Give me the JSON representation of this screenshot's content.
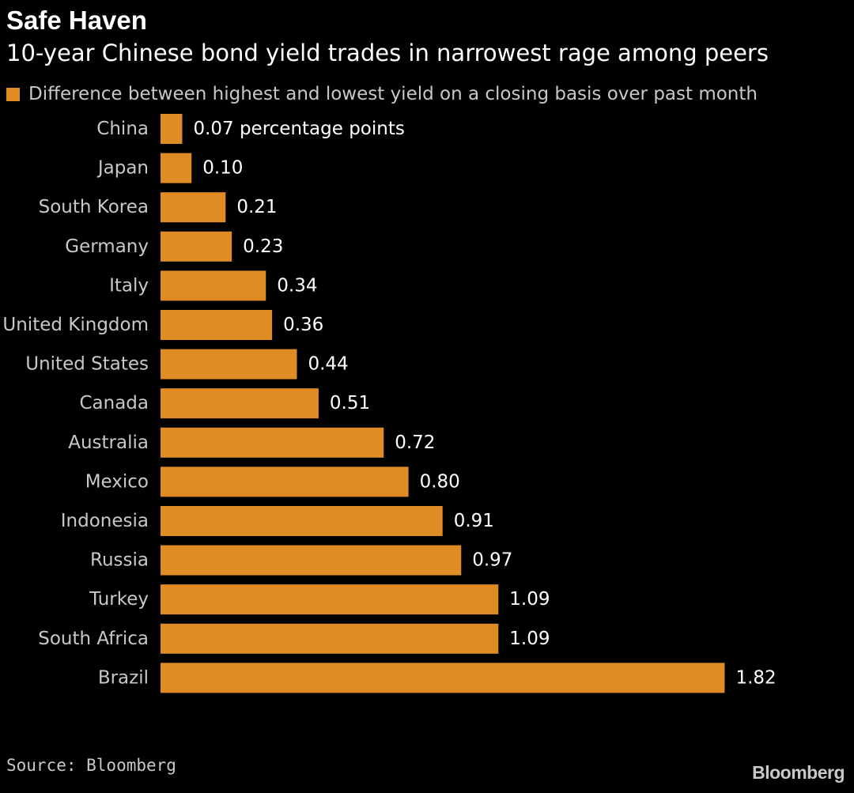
{
  "colors": {
    "background": "#000000",
    "bar": "#e08c25",
    "text": "#ffffff",
    "muted": "#c8c8c8"
  },
  "header": {
    "title": "Safe Haven",
    "subtitle": "10-year Chinese bond yield trades in narrowest rage among peers"
  },
  "legend": {
    "label": "Difference between highest and lowest yield on a closing basis over past month"
  },
  "footer": {
    "source": "Source: Bloomberg",
    "brand": "Bloomberg"
  },
  "chart_data": {
    "type": "bar",
    "orientation": "horizontal",
    "title": "Safe Haven",
    "subtitle": "10-year Chinese bond yield trades in narrowest rage among peers",
    "xlabel": "",
    "ylabel": "",
    "xlim": [
      0,
      2
    ],
    "grid": false,
    "legend_position": "top-left",
    "unit_label": "percentage points",
    "categories": [
      "China",
      "Japan",
      "South Korea",
      "Germany",
      "Italy",
      "United Kingdom",
      "United States",
      "Canada",
      "Australia",
      "Mexico",
      "Indonesia",
      "Russia",
      "Turkey",
      "South Africa",
      "Brazil"
    ],
    "values": [
      0.07,
      0.1,
      0.21,
      0.23,
      0.34,
      0.36,
      0.44,
      0.51,
      0.72,
      0.8,
      0.91,
      0.97,
      1.09,
      1.09,
      1.82
    ],
    "value_labels": [
      "0.07 percentage points",
      "0.10",
      "0.21",
      "0.23",
      "0.34",
      "0.36",
      "0.44",
      "0.51",
      "0.72",
      "0.80",
      "0.91",
      "0.97",
      "1.09",
      "1.09",
      "1.82"
    ]
  }
}
